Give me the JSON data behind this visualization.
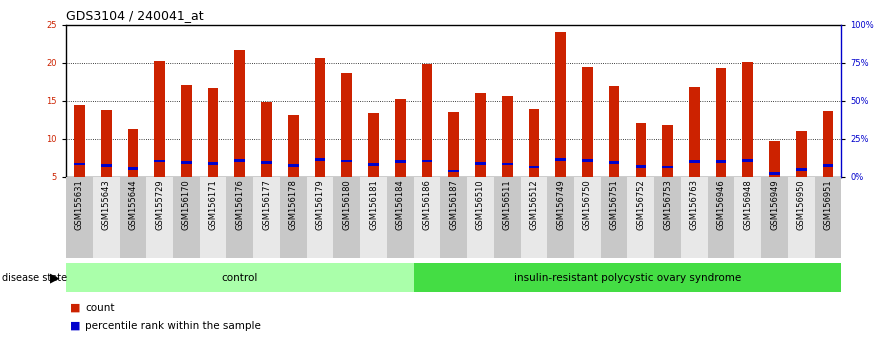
{
  "title": "GDS3104 / 240041_at",
  "samples": [
    "GSM155631",
    "GSM155643",
    "GSM155644",
    "GSM155729",
    "GSM156170",
    "GSM156171",
    "GSM156176",
    "GSM156177",
    "GSM156178",
    "GSM156179",
    "GSM156180",
    "GSM156181",
    "GSM156184",
    "GSM156186",
    "GSM156187",
    "GSM156510",
    "GSM156511",
    "GSM156512",
    "GSM156749",
    "GSM156750",
    "GSM156751",
    "GSM156752",
    "GSM156753",
    "GSM156763",
    "GSM156946",
    "GSM156948",
    "GSM156949",
    "GSM156950",
    "GSM156951"
  ],
  "count_values": [
    14.4,
    13.8,
    11.3,
    20.3,
    17.1,
    16.7,
    21.7,
    14.8,
    13.2,
    20.7,
    18.7,
    13.4,
    15.2,
    19.8,
    13.5,
    16.0,
    15.6,
    13.9,
    24.1,
    19.4,
    16.9,
    12.1,
    11.8,
    16.8,
    19.3,
    20.1,
    9.7,
    11.1,
    13.7
  ],
  "percentile_values": [
    6.7,
    6.5,
    6.1,
    7.1,
    6.9,
    6.8,
    7.2,
    6.9,
    6.5,
    7.3,
    7.1,
    6.6,
    7.0,
    7.1,
    5.8,
    6.8,
    6.7,
    6.3,
    7.3,
    7.2,
    6.9,
    6.4,
    6.3,
    7.0,
    7.0,
    7.2,
    5.5,
    6.0,
    6.5
  ],
  "group_labels": [
    "control",
    "insulin-resistant polycystic ovary syndrome"
  ],
  "group_split": 13,
  "group_color_light": "#AAFFAA",
  "group_color_dark": "#44DD44",
  "bar_color_red": "#CC2200",
  "bar_color_blue": "#0000CC",
  "bar_width": 0.4,
  "ymin": 5,
  "ymax": 25,
  "yticks_left": [
    5,
    10,
    15,
    20,
    25
  ],
  "yticks_right": [
    0,
    25,
    50,
    75,
    100
  ],
  "background_color": "#FFFFFF",
  "plot_bg_color": "#FFFFFF",
  "tick_bg_even": "#C8C8C8",
  "tick_bg_odd": "#E8E8E8",
  "title_fontsize": 9,
  "tick_fontsize": 6,
  "label_fontsize": 7.5,
  "legend_fontsize": 7.5
}
